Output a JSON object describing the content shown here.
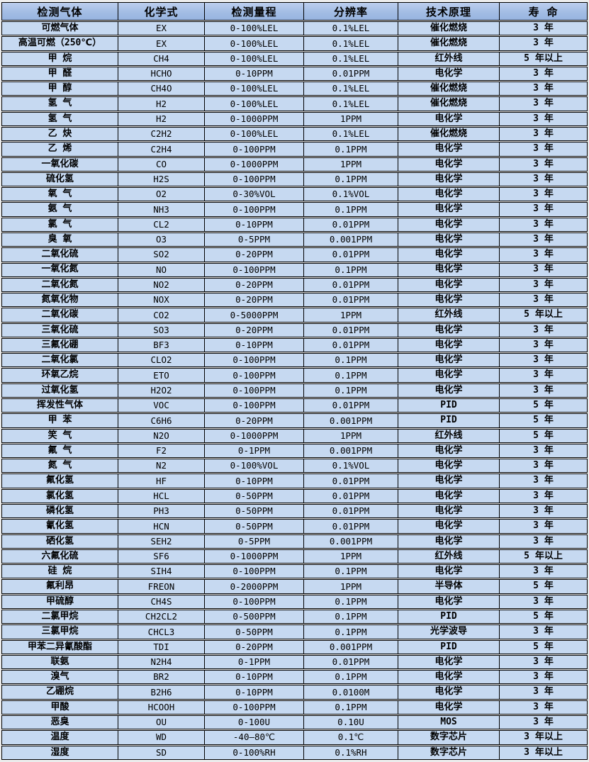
{
  "colors": {
    "page_bg": "#ececec",
    "cell_bg": "#c6d9f1",
    "header_top": "#bcceee",
    "header_mid": "#a3bde4",
    "header_bot": "#97b4e0",
    "border": "#000000",
    "text": "#000000"
  },
  "table": {
    "headers": [
      "检测气体",
      "化学式",
      "检测量程",
      "分辨率",
      "技术原理",
      "寿 命"
    ],
    "column_keys": [
      "gas-name",
      "chemical-formula",
      "detection-range",
      "resolution",
      "technology",
      "lifespan"
    ],
    "rows": [
      [
        "可燃气体",
        "EX",
        "0-100%LEL",
        "0.1%LEL",
        "催化燃烧",
        "3 年"
      ],
      [
        "高温可燃（250℃）",
        "EX",
        "0-100%LEL",
        "0.1%LEL",
        "催化燃烧",
        "3 年"
      ],
      [
        "甲 烷",
        "CH4",
        "0-100%LEL",
        "0.1%LEL",
        "红外线",
        "5 年以上"
      ],
      [
        "甲 醛",
        "HCHO",
        "0-10PPM",
        "0.01PPM",
        "电化学",
        "3 年"
      ],
      [
        "甲 醇",
        "CH4O",
        "0-100%LEL",
        "0.1%LEL",
        "催化燃烧",
        "3 年"
      ],
      [
        "氢 气",
        "H2",
        "0-100%LEL",
        "0.1%LEL",
        "催化燃烧",
        "3 年"
      ],
      [
        "氢 气",
        "H2",
        "0-1000PPM",
        "1PPM",
        "电化学",
        "3 年"
      ],
      [
        "乙 炔",
        "C2H2",
        "0-100%LEL",
        "0.1%LEL",
        "催化燃烧",
        "3 年"
      ],
      [
        "乙 烯",
        "C2H4",
        "0-100PPM",
        "0.1PPM",
        "电化学",
        "3 年"
      ],
      [
        "一氧化碳",
        "CO",
        "0-1000PPM",
        "1PPM",
        "电化学",
        "3 年"
      ],
      [
        "硫化氢",
        "H2S",
        "0-100PPM",
        "0.1PPM",
        "电化学",
        "3 年"
      ],
      [
        "氧 气",
        "O2",
        "0-30%VOL",
        "0.1%VOL",
        "电化学",
        "3 年"
      ],
      [
        "氨 气",
        "NH3",
        "0-100PPM",
        "0.1PPM",
        "电化学",
        "3 年"
      ],
      [
        "氯 气",
        "CL2",
        "0-10PPM",
        "0.01PPM",
        "电化学",
        "3 年"
      ],
      [
        "臭 氧",
        "O3",
        "0-5PPM",
        "0.001PPM",
        "电化学",
        "3 年"
      ],
      [
        "二氧化硫",
        "SO2",
        "0-20PPM",
        "0.01PPM",
        "电化学",
        "3 年"
      ],
      [
        "一氧化氮",
        "NO",
        "0-100PPM",
        "0.1PPM",
        "电化学",
        "3 年"
      ],
      [
        "二氧化氮",
        "NO2",
        "0-20PPM",
        "0.01PPM",
        "电化学",
        "3 年"
      ],
      [
        "氮氧化物",
        "NOX",
        "0-20PPM",
        "0.01PPM",
        "电化学",
        "3 年"
      ],
      [
        "二氧化碳",
        "CO2",
        "0-5000PPM",
        "1PPM",
        "红外线",
        "5 年以上"
      ],
      [
        "三氧化硫",
        "SO3",
        "0-20PPM",
        "0.01PPM",
        "电化学",
        "3 年"
      ],
      [
        "三氟化硼",
        "BF3",
        "0-10PPM",
        "0.01PPM",
        "电化学",
        "3 年"
      ],
      [
        "二氧化氯",
        "CLO2",
        "0-100PPM",
        "0.1PPM",
        "电化学",
        "3 年"
      ],
      [
        "环氧乙烷",
        "ETO",
        "0-100PPM",
        "0.1PPM",
        "电化学",
        "3 年"
      ],
      [
        "过氧化氢",
        "H2O2",
        "0-100PPM",
        "0.1PPM",
        "电化学",
        "3 年"
      ],
      [
        "挥发性气体",
        "VOC",
        "0-100PPM",
        "0.01PPM",
        "PID",
        "5 年"
      ],
      [
        "甲 苯",
        "C6H6",
        "0-20PPM",
        "0.001PPM",
        "PID",
        "5 年"
      ],
      [
        "笑 气",
        "N2O",
        "0-1000PPM",
        "1PPM",
        "红外线",
        "5 年"
      ],
      [
        "氟 气",
        "F2",
        "0-1PPM",
        "0.001PPM",
        "电化学",
        "3 年"
      ],
      [
        "氮 气",
        "N2",
        "0-100%VOL",
        "0.1%VOL",
        "电化学",
        "3 年"
      ],
      [
        "氟化氢",
        "HF",
        "0-10PPM",
        "0.01PPM",
        "电化学",
        "3 年"
      ],
      [
        "氯化氢",
        "HCL",
        "0-50PPM",
        "0.01PPM",
        "电化学",
        "3 年"
      ],
      [
        "磷化氢",
        "PH3",
        "0-50PPM",
        "0.01PPM",
        "电化学",
        "3 年"
      ],
      [
        "氰化氢",
        "HCN",
        "0-50PPM",
        "0.01PPM",
        "电化学",
        "3 年"
      ],
      [
        "硒化氢",
        "SEH2",
        "0-5PPM",
        "0.001PPM",
        "电化学",
        "3 年"
      ],
      [
        "六氟化硫",
        "SF6",
        "0-1000PPM",
        "1PPM",
        "红外线",
        "5 年以上"
      ],
      [
        "硅 烷",
        "SIH4",
        "0-100PPM",
        "0.1PPM",
        "电化学",
        "3 年"
      ],
      [
        "氟利昂",
        "FREON",
        "0-2000PPM",
        "1PPM",
        "半导体",
        "5 年"
      ],
      [
        "甲硫醇",
        "CH4S",
        "0-100PPM",
        "0.1PPM",
        "电化学",
        "3 年"
      ],
      [
        "二氯甲烷",
        "CH2CL2",
        "0-500PPM",
        "0.1PPM",
        "PID",
        "5 年"
      ],
      [
        "三氯甲烷",
        "CHCL3",
        "0-50PPM",
        "0.1PPM",
        "光学波导",
        "3 年"
      ],
      [
        "甲苯二异氰酸酯",
        "TDI",
        "0-20PPM",
        "0.001PPM",
        "PID",
        "5 年"
      ],
      [
        "联氨",
        "N2H4",
        "0-1PPM",
        "0.01PPM",
        "电化学",
        "3 年"
      ],
      [
        "溴气",
        "BR2",
        "0-10PPM",
        "0.1PPM",
        "电化学",
        "3 年"
      ],
      [
        "乙硼烷",
        "B2H6",
        "0-10PPM",
        "0.0100M",
        "电化学",
        "3 年"
      ],
      [
        "甲酸",
        "HCOOH",
        "0-100PPM",
        "0.1PPM",
        "电化学",
        "3 年"
      ],
      [
        "恶臭",
        "OU",
        "0-100U",
        "0.10U",
        "MOS",
        "3 年"
      ],
      [
        "温度",
        "WD",
        "-40—80℃",
        "0.1℃",
        "数字芯片",
        "3 年以上"
      ],
      [
        "湿度",
        "SD",
        "0-100%RH",
        "0.1%RH",
        "数字芯片",
        "3 年以上"
      ]
    ]
  }
}
